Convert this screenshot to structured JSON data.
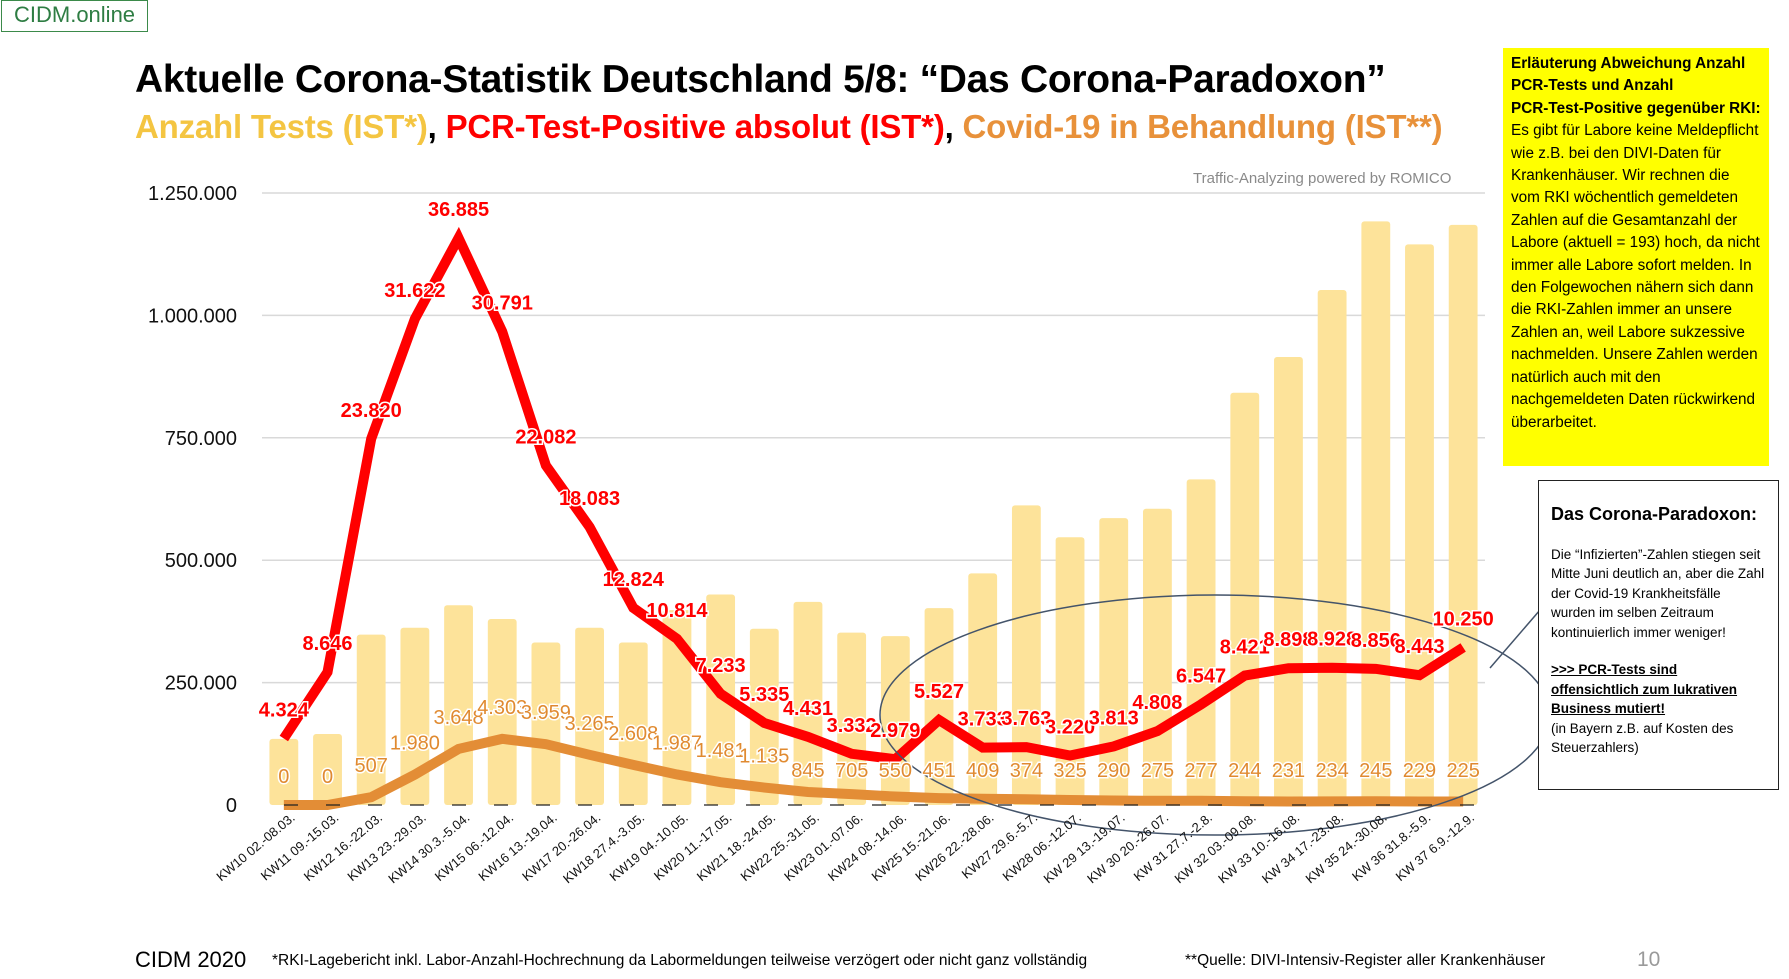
{
  "brand": "CIDM.online",
  "header": {
    "title": "Aktuelle Corona-Statistik Deutschland 5/8: “Das Corona-Paradoxon”",
    "subtitle_parts": {
      "tests": "Anzahl Tests (IST*)",
      "sep1": ", ",
      "pcr": "PCR-Test-Positive absolut (IST*)",
      "sep2": ", ",
      "covid": "Covid-19 in Behandlung (IST**)"
    },
    "powered_by": "Traffic-Analyzing powered by ROMICO"
  },
  "colors": {
    "tests_bar": "#fde39a",
    "pcr_line": "#ff0000",
    "covid_line": "#e38d36",
    "grid": "#d9d9d9",
    "annotation_ellipse": "#44546a",
    "highlight_box": "#ffff00"
  },
  "yellow_note": {
    "heading_lines": [
      "Erläuterung Abweichung Anzahl",
      "PCR-Tests und Anzahl",
      "PCR-Test-Positive gegenüber RKI:"
    ],
    "body": "Es gibt für Labore keine Meldepflicht wie z.B. bei den DIVI-Daten für Krankenhäuser. Wir rechnen die vom RKI wöchentlich gemeldeten Zahlen auf die Gesamtanzahl der Labore (aktuell = 193) hoch, da nicht immer alle Labore sofort melden. In den Folgewochen nähern sich dann die RKI-Zahlen immer an unsere Zahlen an, weil Labore sukzessive nachmelden. Unsere Zahlen werden natürlich auch mit den nachgemeldeten Daten rückwirkend überarbeitet."
  },
  "paradox_note": {
    "heading": "Das Corona-Paradoxon:",
    "body": "Die “Infizierten”-Zahlen stiegen seit Mitte Juni deutlich an, aber die Zahl der Covid-19 Krankheitsfälle wurden im selben Zeitraum kontinuierlich immer weniger!",
    "emphasis": ">>> PCR-Tests sind offensichtlich zum lukrativen Business mutiert!",
    "footnote": "(in Bayern z.B. auf Kosten des Steuerzahlers)"
  },
  "footer": {
    "left": "CIDM 2020",
    "note1": "*RKI-Lagebericht inkl. Labor-Anzahl-Hochrechnung da Labormeldungen teilweise verzögert oder nicht ganz vollständig",
    "note2": "**Quelle: DIVI-Intensiv-Register aller Krankenhäuser",
    "page": "10"
  },
  "chart_data": {
    "type": "bar",
    "title": "Aktuelle Corona-Statistik Deutschland 5/8: Das Corona-Paradoxon",
    "xlabel": "",
    "ylabel": "",
    "ylim": [
      0,
      1250000
    ],
    "yticks": [
      0,
      250000,
      500000,
      750000,
      1000000,
      1250000
    ],
    "ytick_labels": [
      "0",
      "250.000",
      "500.000",
      "750.000",
      "1.000.000",
      "1.250.000"
    ],
    "grid": true,
    "categories": [
      "KW10 02.-08.03.",
      "KW11 09.-15.03.",
      "KW12 16.-22.03.",
      "KW13 23.-29.03.",
      "KW14 30.3.-5.04.",
      "KW15 06.-12.04.",
      "KW16 13.-19.04.",
      "KW17 20.-26.04.",
      "KW18 27.4.-3.05.",
      "KW19 04.-10.05.",
      "KW20 11.-17.05.",
      "KW21 18.-24.05.",
      "KW22 25.-31.05.",
      "KW23 01.-07.06.",
      "KW24 08.-14.06.",
      "KW25 15.-21.06.",
      "KW26 22.-28.06.",
      "KW27 29.6.-5.7.",
      "KW28 06.-12.07.",
      "KW 29 13.-19.07.",
      "KW 30 20.-26.07.",
      "KW 31 27.7.-2.8.",
      "KW 32 03.-09.08.",
      "KW 33 10.-16.08.",
      "KW 34 17.-23.08.",
      "KW 35 24.-30.08.",
      "KW 36 31.8.-5.9.",
      "KW 37 6.9.-12.9."
    ],
    "series": [
      {
        "name": "Anzahl Tests (IST*)",
        "type": "bar",
        "values": [
          135000,
          145000,
          348000,
          362000,
          408000,
          380000,
          332000,
          362000,
          332000,
          398000,
          430000,
          360000,
          415000,
          352000,
          345000,
          402000,
          473000,
          612000,
          547000,
          586000,
          605000,
          665000,
          842000,
          915000,
          1052000,
          1192000,
          1145000,
          1185000
        ]
      },
      {
        "name": "PCR-Test-Positive absolut (IST*)",
        "type": "line",
        "labels": [
          "4.324",
          "8.646",
          "23.820",
          "31.622",
          "36.885",
          "30.791",
          "22.082",
          "18.083",
          "12.824",
          "10.814",
          "7.233",
          "5.335",
          "4.431",
          "3.332",
          "2.979",
          "5.527",
          "3.733",
          "3.763",
          "3.220",
          "3.813",
          "4.808",
          "6.547",
          "8.421",
          "8.898",
          "8.928",
          "8.856",
          "8.443",
          "10.250"
        ],
        "values": [
          4324,
          8646,
          23820,
          31622,
          36885,
          30791,
          22082,
          18083,
          12824,
          10814,
          7233,
          5335,
          4431,
          3332,
          2979,
          5527,
          3733,
          3763,
          3220,
          3813,
          4808,
          6547,
          8421,
          8898,
          8928,
          8856,
          8443,
          10250
        ],
        "plotted_scale_factor": 31.4
      },
      {
        "name": "Covid-19 in Behandlung (IST**)",
        "type": "line",
        "labels": [
          "0",
          "0",
          "507",
          "1.980",
          "3.648",
          "4.303",
          "3.959",
          "3.265",
          "2.608",
          "1.987",
          "1.481",
          "1.135",
          "845",
          "705",
          "550",
          "451",
          "409",
          "374",
          "325",
          "290",
          "275",
          "277",
          "244",
          "231",
          "234",
          "245",
          "229",
          "225"
        ],
        "values": [
          0,
          0,
          507,
          1980,
          3648,
          4303,
          3959,
          3265,
          2608,
          1987,
          1481,
          1135,
          845,
          705,
          550,
          451,
          409,
          374,
          325,
          290,
          275,
          277,
          244,
          231,
          234,
          245,
          229,
          225
        ],
        "plotted_scale_factor": 31.4
      }
    ],
    "annotations": [
      "Ellipse highlighting KW25–KW37 with connector to 'Das Corona-Paradoxon' note"
    ]
  }
}
